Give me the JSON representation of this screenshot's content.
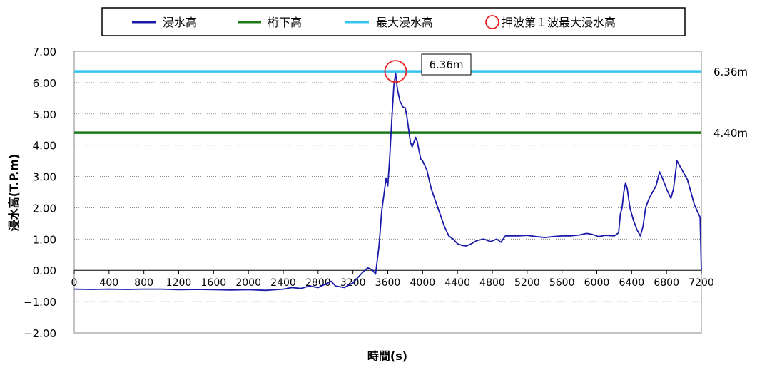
{
  "chart_data": {
    "type": "line",
    "title": "",
    "xlabel": "時間(s)",
    "ylabel": "浸水高(T.P.m)",
    "xlim": [
      0,
      7200
    ],
    "ylim": [
      -2,
      7
    ],
    "x_ticks": [
      0,
      400,
      800,
      1200,
      1600,
      2000,
      2400,
      2800,
      3200,
      3600,
      4000,
      4400,
      4800,
      5200,
      5600,
      6000,
      6400,
      6800,
      7200
    ],
    "x_tick_labels": [
      "0",
      "400",
      "800",
      "1200",
      "1600",
      "2000",
      "2400",
      "2800",
      "3200",
      "3600",
      "4000",
      "4400",
      "4800",
      "5200",
      "5600",
      "6000",
      "6400",
      "6800",
      "7200"
    ],
    "y_ticks": [
      -2,
      -1,
      0,
      1,
      2,
      3,
      4,
      5,
      6,
      7
    ],
    "y_tick_labels": [
      "−2.00",
      "−1.00",
      "0.00",
      "1.00",
      "2.00",
      "3.00",
      "4.00",
      "5.00",
      "6.00",
      "7.00"
    ],
    "grid": "horizontal-dotted",
    "legend_position": "top",
    "legend": [
      {
        "label": "浸水高",
        "color": "#1a1aaa",
        "kind": "line"
      },
      {
        "label": "桁下高",
        "color": "#1a7a1a",
        "kind": "line"
      },
      {
        "label": "最大浸水高",
        "color": "#33c4f0",
        "kind": "line"
      },
      {
        "label": "押波第１波最大浸水高",
        "color": "#ee2222",
        "kind": "circle"
      }
    ],
    "reference_lines": [
      {
        "name": "桁下高",
        "y": 4.4,
        "label": "4.40m",
        "color": "#1a7a1a"
      },
      {
        "name": "最大浸水高",
        "y": 6.36,
        "label": "6.36m",
        "color": "#33c4f0"
      }
    ],
    "peak_marker": {
      "x": 3690,
      "y": 6.36,
      "label": "6.36m",
      "color": "#ee2222"
    },
    "series": [
      {
        "name": "浸水高",
        "color": "#1a1aaa",
        "points": [
          [
            0,
            -0.6
          ],
          [
            200,
            -0.61
          ],
          [
            400,
            -0.6
          ],
          [
            600,
            -0.61
          ],
          [
            800,
            -0.6
          ],
          [
            1000,
            -0.6
          ],
          [
            1200,
            -0.62
          ],
          [
            1400,
            -0.61
          ],
          [
            1600,
            -0.62
          ],
          [
            1800,
            -0.63
          ],
          [
            2000,
            -0.62
          ],
          [
            2200,
            -0.64
          ],
          [
            2400,
            -0.6
          ],
          [
            2500,
            -0.55
          ],
          [
            2600,
            -0.58
          ],
          [
            2700,
            -0.5
          ],
          [
            2800,
            -0.55
          ],
          [
            2900,
            -0.42
          ],
          [
            2950,
            -0.35
          ],
          [
            3000,
            -0.5
          ],
          [
            3100,
            -0.55
          ],
          [
            3200,
            -0.4
          ],
          [
            3300,
            -0.1
          ],
          [
            3370,
            0.08
          ],
          [
            3420,
            0.02
          ],
          [
            3460,
            -0.12
          ],
          [
            3500,
            0.8
          ],
          [
            3530,
            1.9
          ],
          [
            3560,
            2.5
          ],
          [
            3580,
            2.95
          ],
          [
            3600,
            2.7
          ],
          [
            3620,
            3.5
          ],
          [
            3650,
            5.0
          ],
          [
            3670,
            5.9
          ],
          [
            3690,
            6.3
          ],
          [
            3710,
            5.8
          ],
          [
            3740,
            5.4
          ],
          [
            3760,
            5.3
          ],
          [
            3780,
            5.2
          ],
          [
            3800,
            5.2
          ],
          [
            3820,
            4.9
          ],
          [
            3840,
            4.5
          ],
          [
            3860,
            4.1
          ],
          [
            3880,
            3.95
          ],
          [
            3900,
            4.1
          ],
          [
            3920,
            4.25
          ],
          [
            3940,
            4.1
          ],
          [
            3960,
            3.8
          ],
          [
            3980,
            3.55
          ],
          [
            4000,
            3.5
          ],
          [
            4050,
            3.2
          ],
          [
            4100,
            2.6
          ],
          [
            4150,
            2.2
          ],
          [
            4200,
            1.8
          ],
          [
            4250,
            1.4
          ],
          [
            4300,
            1.1
          ],
          [
            4350,
            1.0
          ],
          [
            4400,
            0.85
          ],
          [
            4450,
            0.8
          ],
          [
            4500,
            0.78
          ],
          [
            4560,
            0.85
          ],
          [
            4620,
            0.95
          ],
          [
            4700,
            1.0
          ],
          [
            4780,
            0.92
          ],
          [
            4850,
            1.0
          ],
          [
            4900,
            0.9
          ],
          [
            4950,
            1.1
          ],
          [
            5100,
            1.1
          ],
          [
            5200,
            1.12
          ],
          [
            5300,
            1.08
          ],
          [
            5400,
            1.05
          ],
          [
            5500,
            1.08
          ],
          [
            5600,
            1.1
          ],
          [
            5700,
            1.1
          ],
          [
            5800,
            1.13
          ],
          [
            5880,
            1.18
          ],
          [
            5950,
            1.15
          ],
          [
            6020,
            1.08
          ],
          [
            6100,
            1.12
          ],
          [
            6200,
            1.1
          ],
          [
            6250,
            1.2
          ],
          [
            6270,
            1.8
          ],
          [
            6290,
            2.0
          ],
          [
            6310,
            2.5
          ],
          [
            6330,
            2.8
          ],
          [
            6350,
            2.6
          ],
          [
            6380,
            2.0
          ],
          [
            6420,
            1.6
          ],
          [
            6460,
            1.3
          ],
          [
            6500,
            1.1
          ],
          [
            6530,
            1.4
          ],
          [
            6560,
            2.0
          ],
          [
            6600,
            2.3
          ],
          [
            6640,
            2.5
          ],
          [
            6680,
            2.7
          ],
          [
            6720,
            3.15
          ],
          [
            6760,
            2.9
          ],
          [
            6800,
            2.6
          ],
          [
            6850,
            2.3
          ],
          [
            6880,
            2.6
          ],
          [
            6920,
            3.5
          ],
          [
            6960,
            3.3
          ],
          [
            7000,
            3.1
          ],
          [
            7040,
            2.9
          ],
          [
            7080,
            2.5
          ],
          [
            7120,
            2.1
          ],
          [
            7160,
            1.85
          ],
          [
            7185,
            1.7
          ],
          [
            7200,
            0.0
          ]
        ]
      }
    ]
  }
}
